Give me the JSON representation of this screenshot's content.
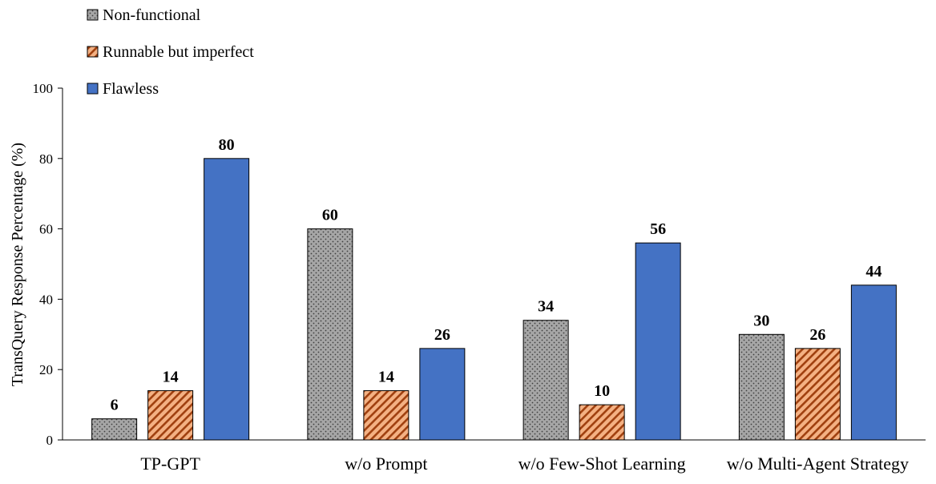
{
  "chart_data": {
    "type": "bar",
    "title": "",
    "xlabel": "",
    "ylabel": "TransQuery Response Percentage (%)",
    "ylim": [
      0,
      100
    ],
    "yticks": [
      0,
      20,
      40,
      60,
      80,
      100
    ],
    "grid": false,
    "legend_position": "top-left",
    "categories": [
      "TP-GPT",
      "w/o Prompt",
      "w/o Few-Shot Learning",
      "w/o Multi-Agent Strategy"
    ],
    "series": [
      {
        "name": "Non-functional",
        "values": [
          6,
          60,
          34,
          30
        ],
        "color": "#a6a6a6",
        "pattern": "dots"
      },
      {
        "name": "Runnable but imperfect",
        "values": [
          14,
          14,
          10,
          26
        ],
        "color": "#f4b183",
        "pattern": "diagonal-stripes"
      },
      {
        "name": "Flawless",
        "values": [
          80,
          26,
          56,
          44
        ],
        "color": "#4472c4",
        "pattern": "solid"
      }
    ]
  }
}
